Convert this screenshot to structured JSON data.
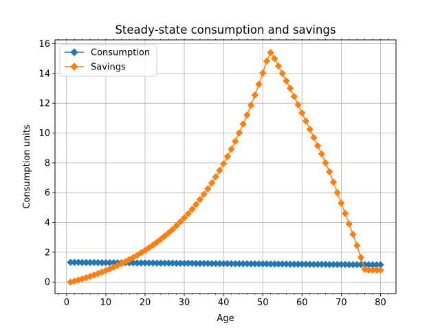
{
  "chart_data": {
    "type": "line",
    "title": "Steady-state consumption and savings",
    "xlabel": "Age",
    "ylabel": "Consumption units",
    "xlim": [
      -2.95,
      83.95
    ],
    "ylim": [
      -0.774,
      16.254
    ],
    "xticks": [
      0,
      10,
      20,
      30,
      40,
      50,
      60,
      70,
      80
    ],
    "yticks": [
      0,
      2,
      4,
      6,
      8,
      10,
      12,
      14,
      16
    ],
    "grid": true,
    "legend_position": "top-left",
    "x": [
      1,
      2,
      3,
      4,
      5,
      6,
      7,
      8,
      9,
      10,
      11,
      12,
      13,
      14,
      15,
      16,
      17,
      18,
      19,
      20,
      21,
      22,
      23,
      24,
      25,
      26,
      27,
      28,
      29,
      30,
      31,
      32,
      33,
      34,
      35,
      36,
      37,
      38,
      39,
      40,
      41,
      42,
      43,
      44,
      45,
      46,
      47,
      48,
      49,
      50,
      51,
      52,
      53,
      54,
      55,
      56,
      57,
      58,
      59,
      60,
      61,
      62,
      63,
      64,
      65,
      66,
      67,
      68,
      69,
      70,
      71,
      72,
      73,
      74,
      75,
      76,
      77,
      78,
      79,
      80
    ],
    "series": [
      {
        "name": "Consumption",
        "color": "#1f77b4",
        "marker": "diamond",
        "values": [
          1.32,
          1.32,
          1.32,
          1.31,
          1.31,
          1.31,
          1.31,
          1.31,
          1.3,
          1.3,
          1.3,
          1.3,
          1.29,
          1.29,
          1.29,
          1.29,
          1.29,
          1.28,
          1.28,
          1.28,
          1.28,
          1.28,
          1.27,
          1.27,
          1.27,
          1.27,
          1.27,
          1.26,
          1.26,
          1.26,
          1.26,
          1.26,
          1.25,
          1.25,
          1.25,
          1.25,
          1.24,
          1.24,
          1.24,
          1.24,
          1.24,
          1.23,
          1.23,
          1.23,
          1.23,
          1.23,
          1.22,
          1.22,
          1.22,
          1.22,
          1.22,
          1.21,
          1.21,
          1.21,
          1.21,
          1.21,
          1.2,
          1.2,
          1.2,
          1.2,
          1.2,
          1.19,
          1.19,
          1.19,
          1.19,
          1.19,
          1.18,
          1.18,
          1.18,
          1.18,
          1.18,
          1.17,
          1.17,
          1.17,
          1.17,
          1.17,
          1.16,
          1.16,
          1.16,
          1.16
        ]
      },
      {
        "name": "Savings",
        "color": "#ff7f0e",
        "marker": "diamond",
        "values": [
          0.0,
          0.06,
          0.13,
          0.21,
          0.29,
          0.38,
          0.47,
          0.57,
          0.67,
          0.77,
          0.88,
          1.0,
          1.12,
          1.24,
          1.37,
          1.51,
          1.65,
          1.8,
          1.96,
          2.12,
          2.3,
          2.48,
          2.67,
          2.87,
          3.08,
          3.3,
          3.53,
          3.78,
          4.04,
          4.31,
          4.59,
          4.89,
          5.21,
          5.54,
          5.89,
          6.26,
          6.65,
          7.06,
          7.49,
          7.94,
          8.42,
          8.92,
          9.45,
          10.01,
          10.6,
          11.21,
          11.86,
          12.55,
          13.27,
          14.03,
          14.83,
          15.4,
          15.0,
          14.5,
          14.0,
          13.5,
          13.0,
          12.45,
          11.9,
          11.35,
          10.8,
          10.25,
          9.7,
          9.15,
          8.6,
          8.0,
          7.4,
          6.7,
          6.0,
          5.3,
          4.6,
          3.9,
          3.2,
          2.45,
          1.65,
          0.85,
          0.8,
          0.8,
          0.8,
          0.8
        ]
      }
    ]
  }
}
